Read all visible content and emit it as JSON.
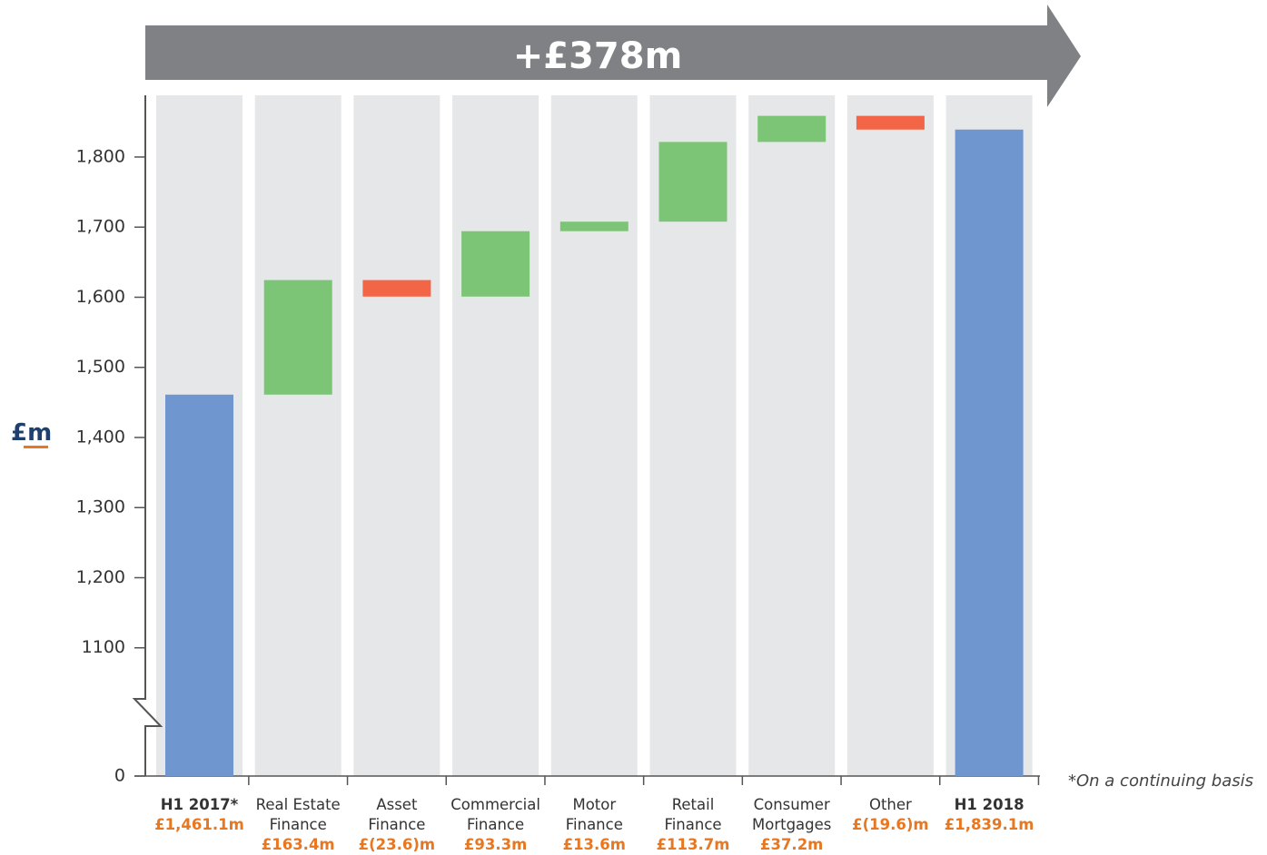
{
  "chart_data": {
    "type": "waterfall",
    "banner": "+£378m",
    "y_axis_label": "£m",
    "footnote": "*On a continuing basis",
    "categories": [
      "H1 2017*",
      "Real Estate Finance",
      "Asset Finance",
      "Commercial Finance",
      "Motor Finance",
      "Retail Finance",
      "Consumer Mortgages",
      "Other",
      "H1 2018"
    ],
    "measures": [
      "total",
      "relative",
      "relative",
      "relative",
      "relative",
      "relative",
      "relative",
      "relative",
      "total"
    ],
    "values": [
      1461.1,
      163.4,
      -23.6,
      93.3,
      13.6,
      113.7,
      37.2,
      -19.6,
      1839.1
    ],
    "value_labels": [
      "£1,461.1m",
      "£163.4m",
      "£(23.6)m",
      "£93.3m",
      "£13.6m",
      "£113.7m",
      "£37.2m",
      "£(19.6)m",
      "£1,839.1m"
    ],
    "colors": {
      "total": "#6f96cf",
      "increase": "#7cc576",
      "decrease": "#f26546"
    },
    "ylim": [
      1000,
      1888
    ],
    "yticks": [
      0,
      1100,
      {
        "value": 1100,
        "label": "1,100"
      },
      {
        "value": 1200,
        "label": "1,200"
      },
      {
        "value": 1300,
        "label": "1,300"
      },
      {
        "value": 1400,
        "label": "1,400"
      },
      {
        "value": 1500,
        "label": "1,500"
      },
      {
        "value": 1600,
        "label": "1,600"
      },
      {
        "value": 1700,
        "label": "1,700"
      },
      {
        "value": 1800,
        "label": "1,800"
      }
    ],
    "axis_break": true
  }
}
